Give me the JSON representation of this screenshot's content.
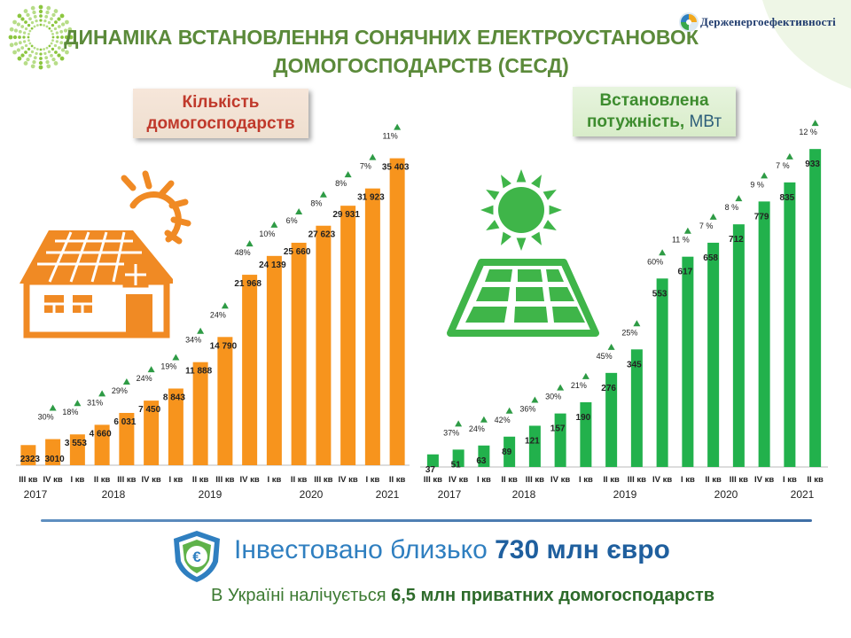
{
  "title": {
    "line1": "ДИНАМІКА ВСТАНОВЛЕННЯ СОНЯЧНИХ ЕЛЕКТРОУСТАНОВОК",
    "line2": "ДОМОГОСПОДАРСТВ (СЕСД)"
  },
  "brand": "Держенергоефективності",
  "colors": {
    "orange": "#f7941d",
    "green": "#22b14c",
    "title_green": "#5b8a3a",
    "blue": "#2f7fc0"
  },
  "icons": [
    "house-solar-icon",
    "sun-icon",
    "solar-panel-icon",
    "euro-shield-icon",
    "brand-logo-icon"
  ],
  "footer": {
    "invest_prefix": "Інвестовано близько ",
    "invest_bold": "730 млн євро",
    "households_prefix": "В Україні налічується ",
    "households_bold": "6,5 млн приватних домогосподарств"
  },
  "chart_data": [
    {
      "type": "bar",
      "title_line1": "Кількість",
      "title_line2": "домогосподарств",
      "categories": [
        "III кв",
        "IV кв",
        "I кв",
        "II кв",
        "III кв",
        "IV кв",
        "I кв",
        "II кв",
        "III кв",
        "IV кв",
        "I кв",
        "II кв",
        "III кв",
        "IV кв",
        "I кв",
        "II кв"
      ],
      "values": [
        2323,
        3010,
        3553,
        4660,
        6031,
        7450,
        8843,
        11888,
        14790,
        21968,
        24139,
        25660,
        27623,
        29931,
        31923,
        35403
      ],
      "value_labels": [
        "2323",
        "3010",
        "3 553",
        "4 660",
        "6 031",
        "7 450",
        "8 843",
        "11 888",
        "14 790",
        "21 968",
        "24 139",
        "25 660",
        "27 623",
        "29 931",
        "31 923",
        "35 403"
      ],
      "growth_labels": [
        "",
        "30%",
        "18%",
        "31%",
        "29%",
        "24%",
        "19%",
        "34%",
        "24%",
        "48%",
        "10%",
        "6%",
        "8%",
        "8%",
        "7%",
        "11%"
      ],
      "years": [
        "2017",
        "2018",
        "2019",
        "2020",
        "2021"
      ],
      "ylim": [
        0,
        37000
      ],
      "color": "#f7941d"
    },
    {
      "type": "bar",
      "title_line1": "Встановлена",
      "title_line2": "потужність,",
      "unit": "МВт",
      "categories": [
        "III кв",
        "IV кв",
        "I кв",
        "II кв",
        "III кв",
        "IV кв",
        "I кв",
        "II кв",
        "III кв",
        "IV кв",
        "I кв",
        "II кв",
        "III кв",
        "IV кв",
        "I кв",
        "II кв"
      ],
      "values": [
        37,
        51,
        63,
        89,
        121,
        157,
        190,
        276,
        345,
        553,
        617,
        658,
        712,
        779,
        835,
        933
      ],
      "value_labels": [
        "37",
        "51",
        "63",
        "89",
        "121",
        "157",
        "190",
        "276",
        "345",
        "553",
        "617",
        "658",
        "712",
        "779",
        "835",
        "933"
      ],
      "growth_labels": [
        "",
        "37%",
        "24%",
        "42%",
        "36%",
        "30%",
        "21%",
        "45%",
        "25%",
        "60%",
        "11 %",
        "7 %",
        "8 %",
        "9 %",
        "7 %",
        "12 %"
      ],
      "years": [
        "2017",
        "2018",
        "2019",
        "2020",
        "2021"
      ],
      "ylim": [
        0,
        975
      ],
      "color": "#22b14c"
    }
  ]
}
